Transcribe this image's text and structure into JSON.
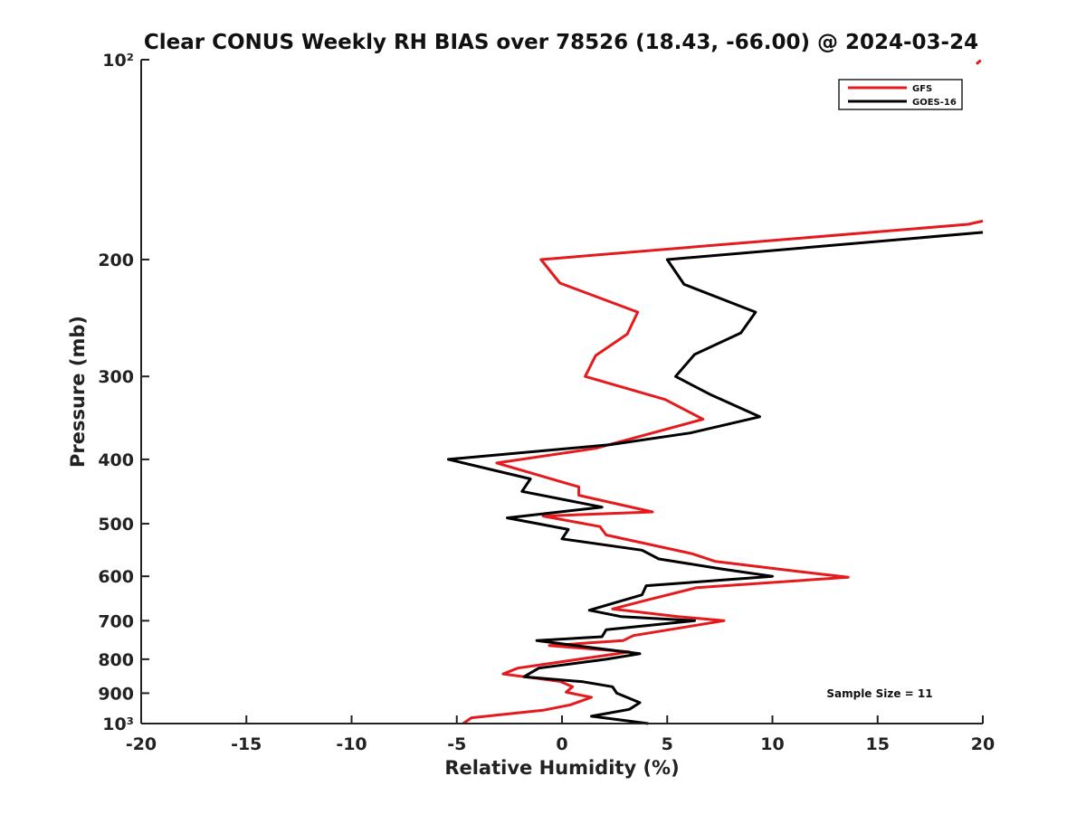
{
  "chart_data": {
    "type": "line",
    "title": "Clear CONUS Weekly RH BIAS over 78526 (18.43, -66.00) @ 2024-03-24",
    "xlabel": "Relative Humidity (%)",
    "ylabel": "Pressure (mb)",
    "xlim": [
      -20,
      20
    ],
    "ylim": [
      1000,
      100
    ],
    "y_scale": "log",
    "y_reversed": true,
    "grid": false,
    "legend_position": "top-right",
    "x_ticks": [
      -20,
      -15,
      -10,
      -5,
      0,
      5,
      10,
      15,
      20
    ],
    "x_tick_labels": [
      "-20",
      "-15",
      "-10",
      "-5",
      "0",
      "5",
      "10",
      "15",
      "20"
    ],
    "y_ticks": [
      100,
      200,
      300,
      400,
      500,
      600,
      700,
      800,
      900,
      1000
    ],
    "y_tick_labels": [
      "10²",
      "200",
      "300",
      "400",
      "500",
      "600",
      "700",
      "800",
      "900",
      "10³"
    ],
    "annotation": "Sample Size = 11",
    "series": [
      {
        "name": "GFS",
        "color": "#e41a1c",
        "points": [
          [
            20,
            175
          ],
          [
            19.3,
            177
          ],
          [
            -1,
            200
          ],
          [
            -0.1,
            217
          ],
          [
            3.6,
            240
          ],
          [
            3.1,
            259
          ],
          [
            1.6,
            279
          ],
          [
            1.1,
            300
          ],
          [
            4.9,
            325
          ],
          [
            6.7,
            348
          ],
          [
            4.3,
            365
          ],
          [
            1.6,
            385
          ],
          [
            -3.1,
            405
          ],
          [
            0.8,
            440
          ],
          [
            0.8,
            453
          ],
          [
            4.3,
            480
          ],
          [
            -0.9,
            487
          ],
          [
            1.8,
            505
          ],
          [
            2.1,
            520
          ],
          [
            6.2,
            555
          ],
          [
            7.3,
            570
          ],
          [
            11.2,
            590
          ],
          [
            13.6,
            602
          ],
          [
            6.4,
            624
          ],
          [
            4.0,
            652
          ],
          [
            2.4,
            672
          ],
          [
            5.5,
            690
          ],
          [
            7.7,
            700
          ],
          [
            3.4,
            737
          ],
          [
            2.9,
            750
          ],
          [
            -0.6,
            763
          ],
          [
            3.2,
            780
          ],
          [
            -2.1,
            825
          ],
          [
            -2.8,
            842
          ],
          [
            -0.1,
            864
          ],
          [
            0.5,
            880
          ],
          [
            0.2,
            897
          ],
          [
            1.4,
            913
          ],
          [
            0.4,
            937
          ],
          [
            -0.9,
            955
          ],
          [
            -4.3,
            980
          ],
          [
            -4.7,
            1000
          ]
        ]
      },
      {
        "name": "GOES-16",
        "color": "#000000",
        "points": [
          [
            20,
            182
          ],
          [
            5.0,
            200
          ],
          [
            5.8,
            218
          ],
          [
            9.2,
            240
          ],
          [
            8.5,
            258
          ],
          [
            6.3,
            278
          ],
          [
            5.4,
            300
          ],
          [
            7.1,
            320
          ],
          [
            9.4,
            345
          ],
          [
            6.1,
            365
          ],
          [
            2.3,
            380
          ],
          [
            -5.4,
            400
          ],
          [
            -1.5,
            428
          ],
          [
            -1.9,
            447
          ],
          [
            1.9,
            472
          ],
          [
            -2.6,
            490
          ],
          [
            0.3,
            510
          ],
          [
            0.0,
            527
          ],
          [
            3.8,
            548
          ],
          [
            4.6,
            565
          ],
          [
            7.6,
            585
          ],
          [
            10.0,
            600
          ],
          [
            4.0,
            620
          ],
          [
            3.8,
            640
          ],
          [
            1.3,
            675
          ],
          [
            2.8,
            690
          ],
          [
            6.3,
            700
          ],
          [
            2.1,
            722
          ],
          [
            1.9,
            740
          ],
          [
            -1.2,
            750
          ],
          [
            3.7,
            785
          ],
          [
            2.1,
            800
          ],
          [
            -1.1,
            825
          ],
          [
            -1.8,
            850
          ],
          [
            1.0,
            865
          ],
          [
            2.4,
            880
          ],
          [
            2.6,
            900
          ],
          [
            3.7,
            930
          ],
          [
            3.2,
            952
          ],
          [
            1.4,
            975
          ],
          [
            4.1,
            1000
          ]
        ]
      },
      {
        "name": "GFS",
        "color": "#e41a1c",
        "legend": false,
        "points": [
          [
            19.9,
            100.2
          ],
          [
            19.7,
            101.5
          ]
        ]
      }
    ]
  }
}
